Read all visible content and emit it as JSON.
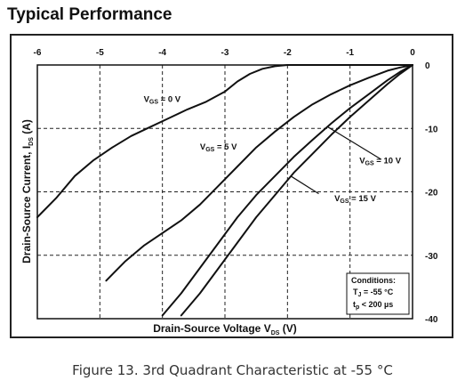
{
  "heading": "Typical Performance",
  "caption": "Figure 13. 3rd Quadrant Characteristic at -55 °C",
  "chart_data": {
    "type": "line",
    "xlabel": "Drain-Source Voltage V",
    "xlabel_sub": "DS",
    "xlabel_unit": " (V)",
    "ylabel": "Drain-Source Current, I",
    "ylabel_sub": "DS",
    "ylabel_unit": " (A)",
    "xlim": [
      -6,
      0
    ],
    "ylim": [
      -40,
      0
    ],
    "x_ticks": [
      -6,
      -5,
      -4,
      -3,
      -2,
      -1,
      0
    ],
    "y_ticks": [
      0,
      -10,
      -20,
      -30,
      -40
    ],
    "grid": true,
    "series": [
      {
        "name": "0 V",
        "label_prefix": "V",
        "label_sub": "GS",
        "label_suffix": " = 0 V",
        "label_at": [
          -4.3,
          -5.8
        ],
        "x": [
          -6.0,
          -5.7,
          -5.4,
          -5.1,
          -4.8,
          -4.5,
          -4.2,
          -3.9,
          -3.6,
          -3.3,
          -3.0,
          -2.8,
          -2.6,
          -2.4,
          -2.2,
          -2.0,
          -1.8,
          -1.6,
          -1.4,
          -1.2,
          -1.0,
          -0.8,
          -0.6,
          -0.4,
          -0.2,
          0.0
        ],
        "y": [
          -24.0,
          -21.0,
          -17.5,
          -15.0,
          -13.0,
          -11.2,
          -9.8,
          -8.4,
          -7.0,
          -5.8,
          -4.2,
          -2.6,
          -1.4,
          -0.6,
          -0.2,
          0.0,
          0.0,
          0.0,
          0.0,
          0.0,
          0.0,
          0.0,
          0.0,
          0.0,
          0.0,
          0.0
        ]
      },
      {
        "name": "5 V",
        "label_prefix": "V",
        "label_sub": "GS",
        "label_suffix": " = 5 V",
        "label_at": [
          -3.4,
          -13.3
        ],
        "x": [
          -4.9,
          -4.6,
          -4.3,
          -4.0,
          -3.7,
          -3.4,
          -3.1,
          -2.8,
          -2.5,
          -2.2,
          -1.9,
          -1.6,
          -1.3,
          -1.0,
          -0.7,
          -0.4,
          -0.2,
          0.0
        ],
        "y": [
          -34.0,
          -31.0,
          -28.5,
          -26.5,
          -24.5,
          -22.0,
          -19.0,
          -16.0,
          -13.0,
          -10.5,
          -8.2,
          -6.2,
          -4.6,
          -3.2,
          -2.0,
          -0.9,
          -0.4,
          0.0
        ]
      },
      {
        "name": "10 V",
        "label_prefix": "V",
        "label_sub": "GS",
        "label_suffix": " = 10 V",
        "label_at": [
          -0.85,
          -15.5
        ],
        "pointer": [
          [
            -0.5,
            -14.9
          ],
          [
            -1.35,
            -9.8
          ]
        ],
        "x": [
          -4.0,
          -3.7,
          -3.4,
          -3.1,
          -2.8,
          -2.5,
          -2.2,
          -1.9,
          -1.6,
          -1.3,
          -1.0,
          -0.7,
          -0.4,
          -0.2,
          0.0
        ],
        "y": [
          -39.5,
          -36.0,
          -32.0,
          -28.0,
          -24.0,
          -20.5,
          -17.5,
          -14.5,
          -11.8,
          -9.2,
          -6.8,
          -4.6,
          -2.4,
          -1.1,
          0.0
        ]
      },
      {
        "name": "15 V",
        "label_prefix": "V",
        "label_sub": "GS",
        "label_suffix": " = 15 V",
        "label_at": [
          -1.25,
          -21.5
        ],
        "pointer": [
          [
            -1.5,
            -20.3
          ],
          [
            -1.95,
            -17.5
          ]
        ],
        "x": [
          -3.7,
          -3.4,
          -3.1,
          -2.8,
          -2.5,
          -2.2,
          -1.9,
          -1.6,
          -1.3,
          -1.0,
          -0.7,
          -0.4,
          -0.2,
          0.0
        ],
        "y": [
          -39.5,
          -36.0,
          -32.0,
          -28.0,
          -24.0,
          -20.5,
          -17.0,
          -14.0,
          -11.0,
          -8.2,
          -5.6,
          -3.0,
          -1.4,
          0.0
        ]
      }
    ],
    "conditions": {
      "title": "Conditions:",
      "line1_prefix": "T",
      "line1_sub": "J",
      "line1_suffix": " = -55 °C",
      "line2_prefix": "t",
      "line2_sub": "p",
      "line2_suffix": " < 200 µs"
    }
  }
}
